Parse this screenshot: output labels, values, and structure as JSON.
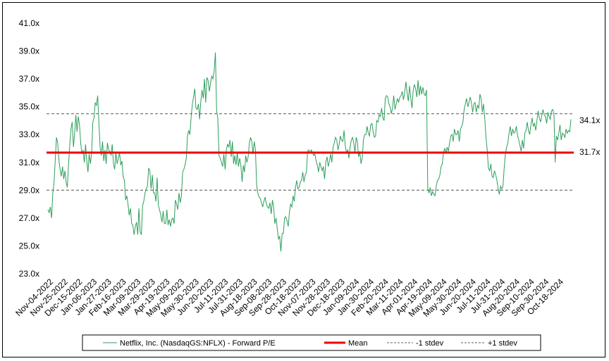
{
  "chart_data": {
    "type": "line",
    "title": "",
    "xlabel": "",
    "ylabel": "",
    "ylim": [
      23,
      41
    ],
    "yticks": [
      "23.0x",
      "25.0x",
      "27.0x",
      "29.0x",
      "31.0x",
      "33.0x",
      "35.0x",
      "37.0x",
      "39.0x",
      "41.0x"
    ],
    "x_tick_labels": [
      "Nov-04-2022",
      "Nov-25-2022",
      "Dec-15-2022",
      "Jan-06-2023",
      "Jan-27-2023",
      "Feb-16-2023",
      "Mar-09-2023",
      "Mar-29-2023",
      "Apr-19-2023",
      "May-09-2023",
      "May-30-2023",
      "Jun-20-2023",
      "Jul-11-2023",
      "Jul-31-2023",
      "Aug-18-2023",
      "Sep-08-2023",
      "Sep-28-2023",
      "Oct-18-2023",
      "Nov-07-2023",
      "Nov-28-2023",
      "Dec-18-2023",
      "Jan-09-2024",
      "Jan-30-2024",
      "Feb-20-2024",
      "Mar-11-2024",
      "Apr-01-2024",
      "Apr-19-2024",
      "May-09-2024",
      "May-30-2024",
      "Jun-20-2024",
      "Jul-11-2024",
      "Jul-31-2024",
      "Aug-20-2024",
      "Sep-10-2024",
      "Sep-30-2024",
      "Oct-18-2024"
    ],
    "grid": false,
    "legend": "bottom",
    "series": [
      {
        "name": "Netflix, Inc. (NasdaqGS:NFLX) - Forward P/E",
        "color": "#2e9e5b",
        "values": [
          27.6,
          27.4,
          27.8,
          27.0,
          28.8,
          29.5,
          31.1,
          32.8,
          32.4,
          31.2,
          30.5,
          30.0,
          30.7,
          29.8,
          30.4,
          29.6,
          29.2,
          30.9,
          32.3,
          33.4,
          33.9,
          32.1,
          33.1,
          34.4,
          33.2,
          34.3,
          33.7,
          32.4,
          31.6,
          31.9,
          31.0,
          32.3,
          31.1,
          30.3,
          31.6,
          30.9,
          31.7,
          33.9,
          34.2,
          35.3,
          35.1,
          35.8,
          33.9,
          32.1,
          31.5,
          32.5,
          31.1,
          31.9,
          30.9,
          32.4,
          31.9,
          31.8,
          31.5,
          32.3,
          30.9,
          30.5,
          31.7,
          30.9,
          31.3,
          31.7,
          30.8,
          31.1,
          30.0,
          29.7,
          28.3,
          28.6,
          28.0,
          27.2,
          27.7,
          26.6,
          26.5,
          25.8,
          26.4,
          26.7,
          25.8,
          27.7,
          26.0,
          25.8,
          27.9,
          28.2,
          28.8,
          29.1,
          29.3,
          30.6,
          30.4,
          29.1,
          30.1,
          28.8,
          28.8,
          28.2,
          29.9,
          27.9,
          27.6,
          27.2,
          26.7,
          27.5,
          26.6,
          26.6,
          27.6,
          26.5,
          26.9,
          26.4,
          26.9,
          27.0,
          26.6,
          28.3,
          28.0,
          27.6,
          28.8,
          28.1,
          28.6,
          30.3,
          30.5,
          30.8,
          31.3,
          32.9,
          33.3,
          33.0,
          34.2,
          35.2,
          35.7,
          36.3,
          34.9,
          34.8,
          35.2,
          34.1,
          35.4,
          36.2,
          35.6,
          37.0,
          35.3,
          37.1,
          36.9,
          36.1,
          36.7,
          37.2,
          37.0,
          37.6,
          38.9,
          34.7,
          34.2,
          31.5,
          31.3,
          31.0,
          30.7,
          31.6,
          30.5,
          31.9,
          32.3,
          32.1,
          32.6,
          31.4,
          32.5,
          30.9,
          31.5,
          30.8,
          31.7,
          30.7,
          31.3,
          30.8,
          29.6,
          30.8,
          30.3,
          31.5,
          31.0,
          31.4,
          32.4,
          32.8,
          32.5,
          31.6,
          32.5,
          31.9,
          29.4,
          28.8,
          28.5,
          28.4,
          28.1,
          27.8,
          28.2,
          28.5,
          28.0,
          27.8,
          27.7,
          28.1,
          27.3,
          28.3,
          27.8,
          26.6,
          27.0,
          26.2,
          25.5,
          25.7,
          24.6,
          25.9,
          25.9,
          27.0,
          27.1,
          26.8,
          26.4,
          27.4,
          28.0,
          27.8,
          28.6,
          28.2,
          29.2,
          29.7,
          29.1,
          29.2,
          29.6,
          29.7,
          30.3,
          29.6,
          30.1,
          30.3,
          31.8,
          31.9,
          31.7,
          31.9,
          31.7,
          31.5,
          31.6,
          31.1,
          30.8,
          30.3,
          31.0,
          30.7,
          30.4,
          30.7,
          29.8,
          31.0,
          31.4,
          30.7,
          31.1,
          31.6,
          31.0,
          32.1,
          32.4,
          32.8,
          32.6,
          31.9,
          32.3,
          32.9,
          32.6,
          32.5,
          33.3,
          32.2,
          31.7,
          31.9,
          31.3,
          32.1,
          32.6,
          32.8,
          32.4,
          31.7,
          32.8,
          32.5,
          31.4,
          31.8,
          30.9,
          31.3,
          32.6,
          33.0,
          33.0,
          33.6,
          33.1,
          32.9,
          33.7,
          33.8,
          33.2,
          32.8,
          32.9,
          34.0,
          33.9,
          34.4,
          34.3,
          34.9,
          34.2,
          34.0,
          35.6,
          35.8,
          35.7,
          35.2,
          35.0,
          34.5,
          34.9,
          35.8,
          34.8,
          35.2,
          35.6,
          35.3,
          35.7,
          35.8,
          36.1,
          35.5,
          36.0,
          36.8,
          36.0,
          35.4,
          36.5,
          35.6,
          34.9,
          36.2,
          36.6,
          36.3,
          35.7,
          36.9,
          35.8,
          36.5,
          35.9,
          36.4,
          35.9,
          35.8,
          36.2,
          29.1,
          28.8,
          29.2,
          28.6,
          28.9,
          28.7,
          28.6,
          29.3,
          29.7,
          29.8,
          30.1,
          30.7,
          30.9,
          31.7,
          32.0,
          31.7,
          32.1,
          31.8,
          32.4,
          32.9,
          33.0,
          32.5,
          33.4,
          33.0,
          33.0,
          33.3,
          32.5,
          33.4,
          33.6,
          33.9,
          34.8,
          35.2,
          35.6,
          35.0,
          35.3,
          35.7,
          35.3,
          34.6,
          35.2,
          35.3,
          34.6,
          35.1,
          34.9,
          35.9,
          35.6,
          34.6,
          35.2,
          34.1,
          32.8,
          31.9,
          30.6,
          30.4,
          30.9,
          30.0,
          29.9,
          30.4,
          30.1,
          29.7,
          29.1,
          28.7,
          29.3,
          29.1,
          29.3,
          30.6,
          31.6,
          32.1,
          32.4,
          33.1,
          33.6,
          32.9,
          33.4,
          33.1,
          33.2,
          33.6,
          32.9,
          32.6,
          32.2,
          31.8,
          32.6,
          32.0,
          33.1,
          33.3,
          33.9,
          33.3,
          33.0,
          33.7,
          34.2,
          33.6,
          33.8,
          33.3,
          34.0,
          34.7,
          34.2,
          33.9,
          34.4,
          34.8,
          34.4,
          34.3,
          33.8,
          34.6,
          34.3,
          34.1,
          34.7,
          34.8,
          34.5,
          31.0,
          32.9,
          32.6,
          33.1,
          33.7,
          32.6,
          33.1,
          33.0,
          32.8,
          33.4,
          33.1,
          33.3,
          33.2,
          34.1
        ]
      },
      {
        "name": "Mean",
        "color": "#ee0000",
        "value": 31.7
      },
      {
        "name": "-1 stdev",
        "color": "#808080",
        "value": 29.0
      },
      {
        "name": "+1 stdev",
        "color": "#808080",
        "value": 34.5
      }
    ],
    "end_labels": [
      "34.1x",
      "31.7x"
    ]
  }
}
